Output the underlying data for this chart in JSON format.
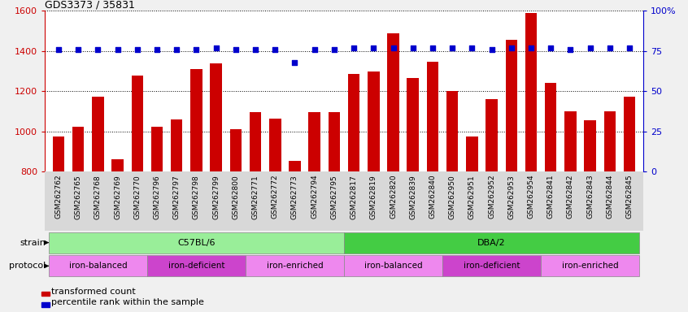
{
  "title": "GDS3373 / 35831",
  "samples": [
    "GSM262762",
    "GSM262765",
    "GSM262768",
    "GSM262769",
    "GSM262770",
    "GSM262796",
    "GSM262797",
    "GSM262798",
    "GSM262799",
    "GSM262800",
    "GSM262771",
    "GSM262772",
    "GSM262773",
    "GSM262794",
    "GSM262795",
    "GSM262817",
    "GSM262819",
    "GSM262820",
    "GSM262839",
    "GSM262840",
    "GSM262950",
    "GSM262951",
    "GSM262952",
    "GSM262953",
    "GSM262954",
    "GSM262841",
    "GSM262842",
    "GSM262843",
    "GSM262844",
    "GSM262845"
  ],
  "bar_values": [
    975,
    1025,
    1175,
    860,
    1280,
    1025,
    1060,
    1310,
    1340,
    1010,
    1095,
    1065,
    855,
    1095,
    1095,
    1285,
    1300,
    1490,
    1265,
    1345,
    1200,
    975,
    1160,
    1455,
    1590,
    1240,
    1100,
    1055,
    1100,
    1175
  ],
  "dot_values": [
    76,
    76,
    76,
    76,
    76,
    76,
    76,
    76,
    77,
    76,
    76,
    76,
    68,
    76,
    76,
    77,
    77,
    77,
    77,
    77,
    77,
    77,
    76,
    77,
    77,
    77,
    76,
    77,
    77,
    77
  ],
  "bar_color": "#cc0000",
  "dot_color": "#0000cc",
  "ylim_left": [
    800,
    1600
  ],
  "ylim_right": [
    0,
    100
  ],
  "yticks_left": [
    800,
    1000,
    1200,
    1400,
    1600
  ],
  "yticks_right": [
    0,
    25,
    50,
    75,
    100
  ],
  "strain_groups": [
    {
      "label": "C57BL/6",
      "start": 0,
      "end": 15,
      "color": "#99ee99"
    },
    {
      "label": "DBA/2",
      "start": 15,
      "end": 30,
      "color": "#44cc44"
    }
  ],
  "protocol_groups": [
    {
      "label": "iron-balanced",
      "start": 0,
      "end": 5,
      "color": "#ee88ee"
    },
    {
      "label": "iron-deficient",
      "start": 5,
      "end": 10,
      "color": "#cc44cc"
    },
    {
      "label": "iron-enriched",
      "start": 10,
      "end": 15,
      "color": "#ee88ee"
    },
    {
      "label": "iron-balanced",
      "start": 15,
      "end": 20,
      "color": "#ee88ee"
    },
    {
      "label": "iron-deficient",
      "start": 20,
      "end": 25,
      "color": "#cc44cc"
    },
    {
      "label": "iron-enriched",
      "start": 25,
      "end": 30,
      "color": "#ee88ee"
    }
  ],
  "legend_items": [
    {
      "label": "transformed count",
      "color": "#cc0000"
    },
    {
      "label": "percentile rank within the sample",
      "color": "#0000cc"
    }
  ],
  "fig_bg_color": "#f0f0f0",
  "plot_bg_color": "#ffffff",
  "xtick_bg_color": "#d8d8d8"
}
